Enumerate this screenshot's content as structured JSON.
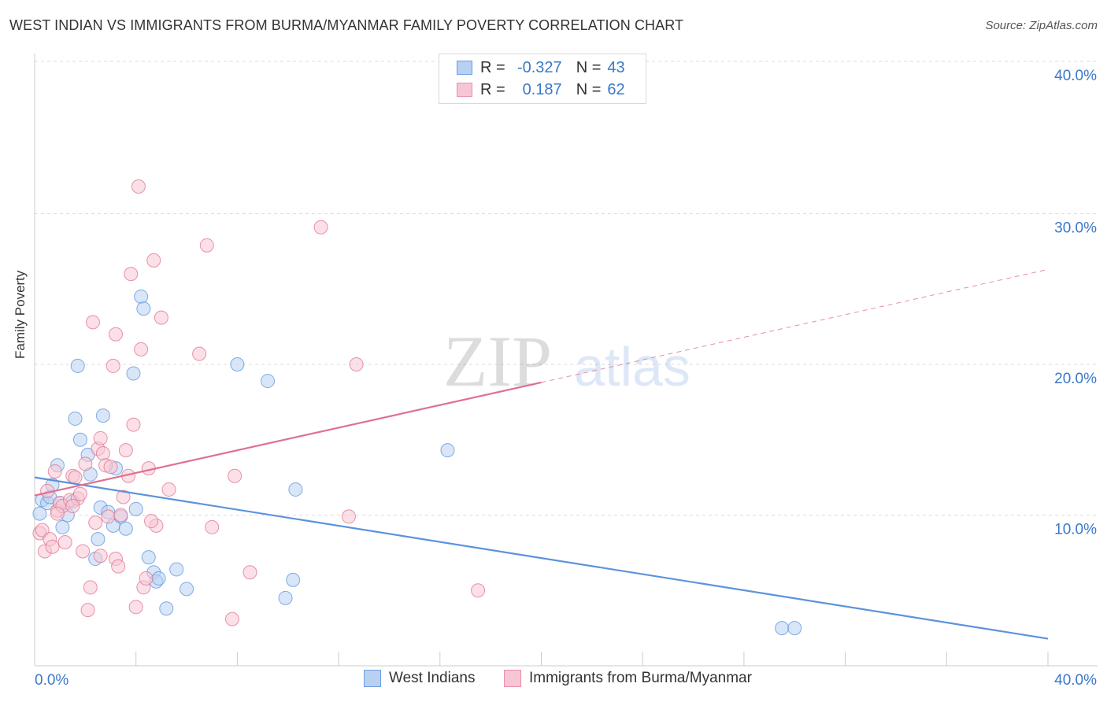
{
  "title": "WEST INDIAN VS IMMIGRANTS FROM BURMA/MYANMAR FAMILY POVERTY CORRELATION CHART",
  "source": "Source: ZipAtlas.com",
  "watermark": {
    "zip": "ZIP",
    "atlas": "atlas"
  },
  "legend_top": {
    "r_label": "R =",
    "n_label": "N =",
    "rows": [
      {
        "r": "-0.327",
        "n": "43",
        "fill": "#b8d1f3",
        "stroke": "#6d9ee0"
      },
      {
        "r": "0.187",
        "n": "62",
        "fill": "#f7c6d4",
        "stroke": "#e890ad"
      }
    ]
  },
  "chart_data": {
    "type": "scatter",
    "title": "WEST INDIAN VS IMMIGRANTS FROM BURMA/MYANMAR FAMILY POVERTY CORRELATION CHART",
    "xlabel": "",
    "ylabel": "Family Poverty",
    "xlim": [
      0,
      40
    ],
    "ylim": [
      0,
      40
    ],
    "x_tick_labels": [
      "0.0%",
      "40.0%"
    ],
    "y_ticks": [
      10,
      20,
      30,
      40
    ],
    "y_tick_labels": [
      "10.0%",
      "20.0%",
      "30.0%",
      "40.0%"
    ],
    "grid": true,
    "legend": "bottom",
    "series": [
      {
        "name": "West Indians",
        "color": "#5b93dc",
        "fill": "#b8d1f3",
        "trend": {
          "x0": 0,
          "y0": 12.5,
          "x1": 40,
          "y1": 1.8,
          "dashed_from": null
        },
        "points": [
          [
            0.2,
            10.1
          ],
          [
            0.3,
            11.0
          ],
          [
            0.5,
            10.8
          ],
          [
            0.6,
            11.2
          ],
          [
            0.7,
            12.0
          ],
          [
            0.9,
            13.3
          ],
          [
            1.0,
            10.8
          ],
          [
            1.1,
            9.2
          ],
          [
            1.3,
            10.0
          ],
          [
            1.5,
            10.9
          ],
          [
            1.6,
            16.4
          ],
          [
            1.7,
            19.9
          ],
          [
            1.8,
            15.0
          ],
          [
            2.1,
            14.0
          ],
          [
            2.2,
            12.7
          ],
          [
            2.4,
            7.1
          ],
          [
            2.5,
            8.4
          ],
          [
            2.6,
            10.5
          ],
          [
            2.7,
            16.6
          ],
          [
            2.9,
            10.2
          ],
          [
            3.1,
            9.3
          ],
          [
            3.2,
            13.1
          ],
          [
            3.4,
            9.9
          ],
          [
            3.6,
            9.1
          ],
          [
            3.9,
            19.4
          ],
          [
            4.0,
            10.4
          ],
          [
            4.2,
            24.5
          ],
          [
            4.3,
            23.7
          ],
          [
            4.5,
            7.2
          ],
          [
            4.7,
            6.2
          ],
          [
            4.8,
            5.6
          ],
          [
            4.9,
            5.8
          ],
          [
            5.2,
            3.8
          ],
          [
            5.6,
            6.4
          ],
          [
            6.0,
            5.1
          ],
          [
            8.0,
            20.0
          ],
          [
            9.2,
            18.9
          ],
          [
            9.9,
            4.5
          ],
          [
            10.2,
            5.7
          ],
          [
            10.3,
            11.7
          ],
          [
            16.3,
            14.3
          ],
          [
            29.5,
            2.5
          ],
          [
            30.0,
            2.5
          ]
        ]
      },
      {
        "name": "Immigrants from Burma/Myanmar",
        "color": "#e0708f",
        "fill": "#f7c6d4",
        "trend": {
          "x0": 0,
          "y0": 11.3,
          "x1": 40,
          "y1": 26.3,
          "dashed_from": 20
        },
        "points": [
          [
            0.2,
            8.8
          ],
          [
            0.3,
            9.0
          ],
          [
            0.4,
            7.6
          ],
          [
            0.5,
            11.6
          ],
          [
            0.6,
            8.4
          ],
          [
            0.7,
            7.9
          ],
          [
            0.8,
            12.9
          ],
          [
            0.9,
            10.3
          ],
          [
            1.0,
            10.8
          ],
          [
            1.1,
            10.6
          ],
          [
            1.2,
            8.2
          ],
          [
            1.4,
            11.0
          ],
          [
            1.5,
            12.6
          ],
          [
            1.6,
            12.5
          ],
          [
            1.7,
            11.1
          ],
          [
            1.8,
            11.4
          ],
          [
            1.9,
            7.6
          ],
          [
            2.0,
            13.4
          ],
          [
            2.1,
            3.7
          ],
          [
            2.2,
            5.2
          ],
          [
            2.3,
            22.8
          ],
          [
            2.4,
            9.5
          ],
          [
            2.5,
            14.4
          ],
          [
            2.6,
            15.1
          ],
          [
            2.7,
            14.1
          ],
          [
            2.8,
            13.3
          ],
          [
            2.9,
            9.9
          ],
          [
            3.0,
            13.2
          ],
          [
            3.1,
            19.9
          ],
          [
            3.2,
            7.1
          ],
          [
            3.3,
            6.6
          ],
          [
            3.4,
            10.0
          ],
          [
            3.5,
            11.2
          ],
          [
            3.6,
            14.3
          ],
          [
            3.7,
            12.6
          ],
          [
            3.8,
            26.0
          ],
          [
            3.9,
            16.0
          ],
          [
            4.0,
            3.9
          ],
          [
            4.1,
            31.8
          ],
          [
            4.2,
            21.0
          ],
          [
            4.3,
            5.2
          ],
          [
            4.4,
            5.8
          ],
          [
            4.5,
            13.1
          ],
          [
            4.7,
            26.9
          ],
          [
            4.8,
            9.3
          ],
          [
            5.0,
            23.1
          ],
          [
            5.3,
            11.7
          ],
          [
            6.5,
            20.7
          ],
          [
            6.8,
            27.9
          ],
          [
            7.0,
            9.2
          ],
          [
            7.8,
            3.1
          ],
          [
            7.9,
            12.6
          ],
          [
            8.5,
            6.2
          ],
          [
            11.3,
            29.1
          ],
          [
            12.4,
            9.9
          ],
          [
            12.7,
            20.0
          ],
          [
            17.5,
            5.0
          ],
          [
            4.6,
            9.6
          ],
          [
            3.2,
            22.0
          ],
          [
            2.6,
            7.3
          ],
          [
            1.5,
            10.6
          ],
          [
            0.9,
            10.1
          ]
        ]
      }
    ]
  }
}
